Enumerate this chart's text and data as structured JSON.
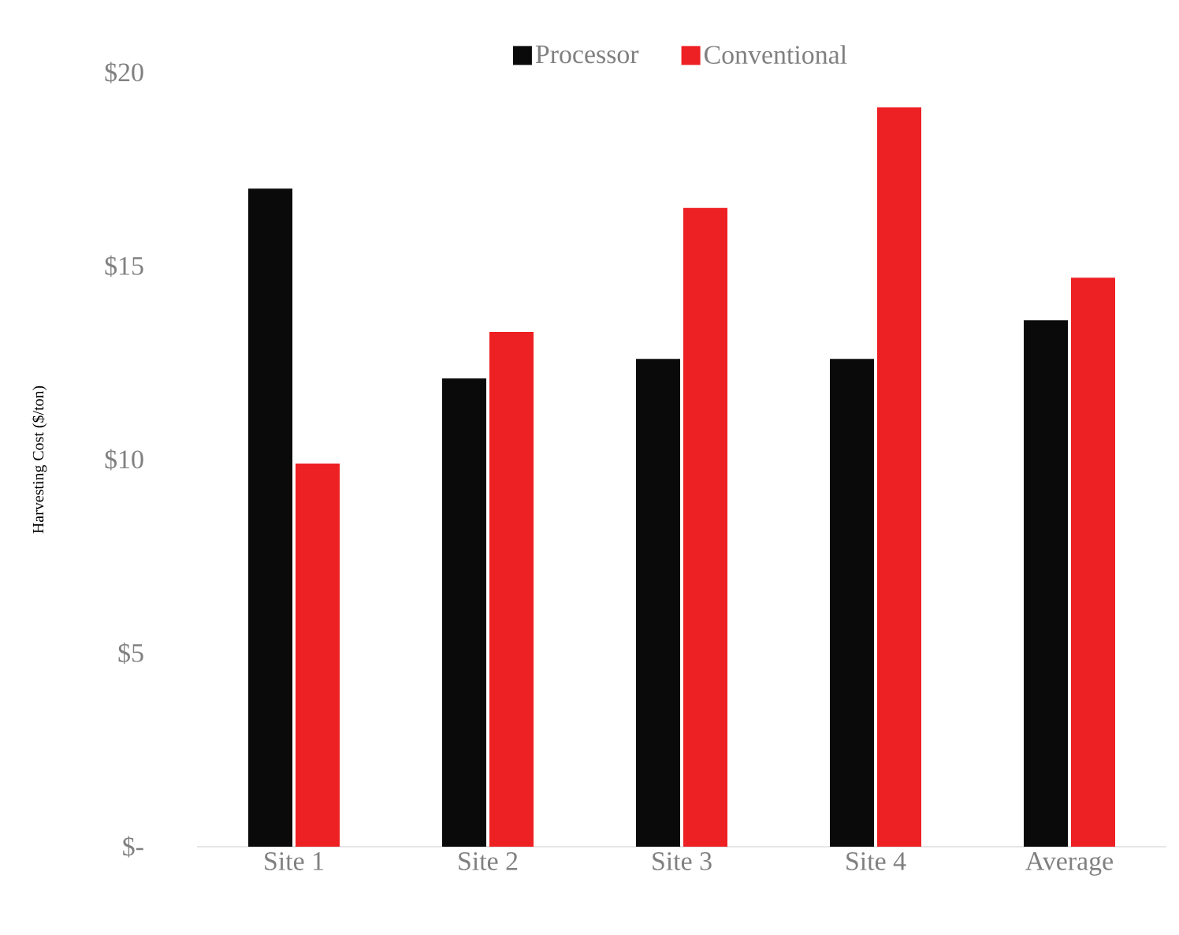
{
  "chart_data": {
    "type": "bar",
    "ylabel": "Harvesting Cost ($/ton)",
    "categories": [
      "Site 1",
      "Site 2",
      "Site 3",
      "Site 4",
      "Average"
    ],
    "series": [
      {
        "name": "Processor",
        "color": "#0a0a0a",
        "values": [
          17.0,
          12.1,
          12.6,
          12.6,
          13.6
        ]
      },
      {
        "name": "Conventional",
        "color": "#ed2024",
        "values": [
          9.9,
          13.3,
          16.5,
          19.1,
          14.7
        ]
      }
    ],
    "ylim": [
      0,
      20
    ],
    "yticks": [
      {
        "value": 0,
        "label": "$-"
      },
      {
        "value": 5,
        "label": "$5"
      },
      {
        "value": 10,
        "label": "$10"
      },
      {
        "value": 15,
        "label": "$15"
      },
      {
        "value": 20,
        "label": "$20"
      }
    ],
    "legend": "top"
  }
}
